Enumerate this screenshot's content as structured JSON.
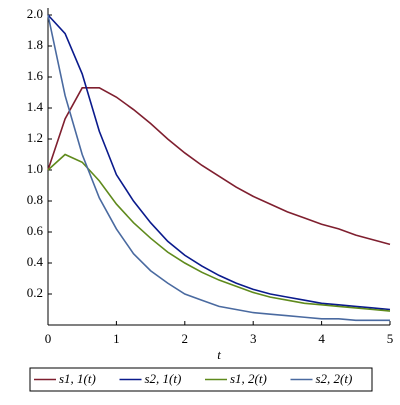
{
  "chart_data": {
    "type": "line",
    "xlabel": "t",
    "x": [
      0,
      0.25,
      0.5,
      0.75,
      1,
      1.25,
      1.5,
      1.75,
      2,
      2.25,
      2.5,
      2.75,
      3,
      3.25,
      3.5,
      3.75,
      4,
      4.25,
      4.5,
      4.75,
      5
    ],
    "series": [
      {
        "name": "s1, 1(t)",
        "color": "#7f1f2f",
        "values": [
          1.0,
          1.33,
          1.53,
          1.53,
          1.47,
          1.39,
          1.3,
          1.2,
          1.11,
          1.03,
          0.96,
          0.89,
          0.83,
          0.78,
          0.73,
          0.69,
          0.65,
          0.62,
          0.58,
          0.55,
          0.52
        ]
      },
      {
        "name": "s2, 1(t)",
        "color": "#0a1a8c",
        "values": [
          2.0,
          1.88,
          1.62,
          1.25,
          0.97,
          0.8,
          0.66,
          0.54,
          0.45,
          0.38,
          0.32,
          0.27,
          0.23,
          0.2,
          0.18,
          0.16,
          0.14,
          0.13,
          0.12,
          0.11,
          0.1
        ]
      },
      {
        "name": "s1, 2(t)",
        "color": "#5f8a1c",
        "values": [
          1.0,
          1.1,
          1.05,
          0.93,
          0.78,
          0.66,
          0.56,
          0.47,
          0.4,
          0.34,
          0.29,
          0.25,
          0.21,
          0.18,
          0.16,
          0.14,
          0.13,
          0.12,
          0.11,
          0.1,
          0.09
        ]
      },
      {
        "name": "s2, 2(t)",
        "color": "#4a6aa0",
        "values": [
          2.0,
          1.48,
          1.1,
          0.82,
          0.62,
          0.46,
          0.35,
          0.27,
          0.2,
          0.16,
          0.12,
          0.1,
          0.08,
          0.07,
          0.06,
          0.05,
          0.04,
          0.04,
          0.03,
          0.03,
          0.03
        ]
      }
    ],
    "xlim": [
      0,
      5
    ],
    "xticks": [
      0,
      1,
      2,
      3,
      4,
      5
    ],
    "ylim": [
      0,
      2
    ],
    "yticks": [
      0.2,
      0.4,
      0.6,
      0.8,
      {
        "value": 1,
        "label": "1.0"
      },
      1.2,
      1.4,
      1.6,
      1.8,
      {
        "value": 2,
        "label": "2.0"
      }
    ],
    "legend": "bottom"
  }
}
